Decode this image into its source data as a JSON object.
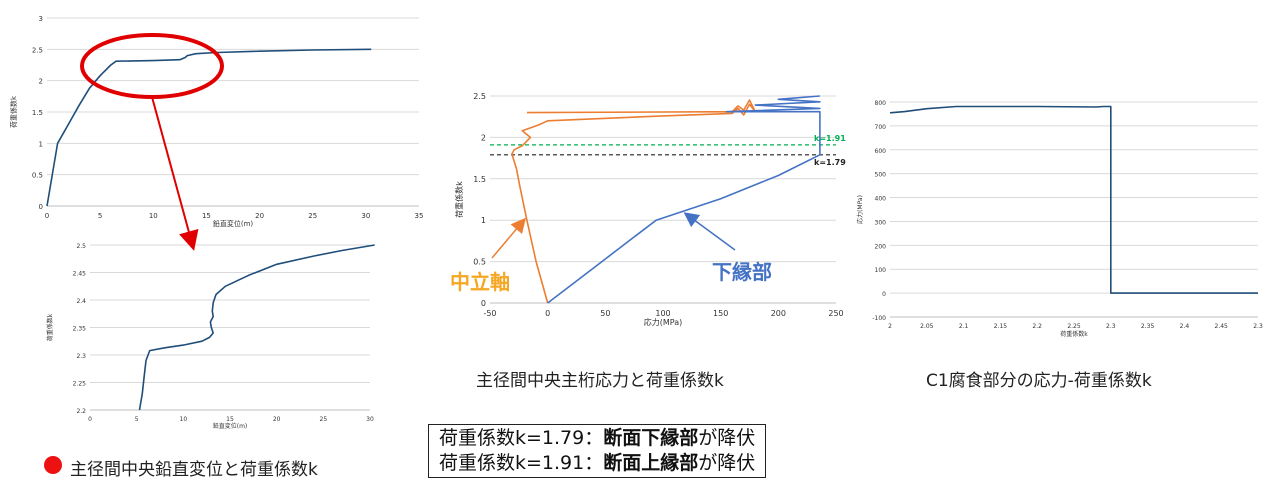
{
  "chart_data": [
    {
      "id": "chart1",
      "type": "line",
      "xlabel": "鉛直変位(m)",
      "ylabel": "荷重係数k",
      "xlim": [
        0,
        35
      ],
      "ylim": [
        0,
        3
      ],
      "xticks": [
        "0",
        "5",
        "10",
        "15",
        "20",
        "25",
        "30",
        "35"
      ],
      "yticks": [
        "0",
        "0.5",
        "1",
        "1.5",
        "2",
        "2.5",
        "3"
      ],
      "grid": true,
      "series": [
        {
          "color": "#1f4e79",
          "x": [
            0,
            1,
            2,
            3,
            4,
            5,
            6,
            6.5,
            10,
            12.5,
            13,
            13.2,
            14,
            16,
            20,
            25,
            30.5
          ],
          "y": [
            0,
            1,
            1.3,
            1.6,
            1.88,
            2.08,
            2.25,
            2.31,
            2.32,
            2.335,
            2.37,
            2.4,
            2.43,
            2.45,
            2.47,
            2.49,
            2.5
          ]
        }
      ]
    },
    {
      "id": "chart2",
      "type": "line",
      "xlabel": "鉛直変位(m)",
      "ylabel": "荷重係数k",
      "xlim": [
        0,
        30
      ],
      "ylim": [
        2.2,
        2.5
      ],
      "xticks": [
        "0",
        "5",
        "10",
        "15",
        "20",
        "25",
        "30"
      ],
      "yticks": [
        "2.2",
        "2.25",
        "2.3",
        "2.35",
        "2.4",
        "2.45",
        "2.5"
      ],
      "grid": true,
      "series": [
        {
          "color": "#1f4e79",
          "x": [
            5.3,
            5.6,
            5.8,
            6.0,
            6.4,
            8,
            10,
            12,
            12.8,
            13.2,
            13.0,
            12.9,
            13.2,
            13.1,
            13.2,
            13.5,
            14.5,
            17,
            20,
            24,
            27,
            30.5
          ],
          "y": [
            2.2,
            2.23,
            2.26,
            2.29,
            2.308,
            2.313,
            2.318,
            2.325,
            2.332,
            2.34,
            2.35,
            2.36,
            2.37,
            2.38,
            2.395,
            2.41,
            2.425,
            2.445,
            2.465,
            2.48,
            2.49,
            2.5
          ]
        }
      ]
    },
    {
      "id": "chart3",
      "type": "line",
      "xlabel": "応力(MPa)",
      "ylabel": "荷重係数k",
      "xlim": [
        -50,
        250
      ],
      "ylim": [
        0,
        2.5
      ],
      "xticks": [
        "-50",
        "0",
        "50",
        "100",
        "150",
        "200",
        "250"
      ],
      "yticks": [
        "0",
        "0.5",
        "1",
        "1.5",
        "2",
        "2.5"
      ],
      "grid": true,
      "series": [
        {
          "name": "中立軸",
          "color": "#ed7d31",
          "x": [
            0,
            -10,
            -18,
            -24,
            -27,
            -31,
            -29,
            -22,
            -15,
            -22,
            -8,
            0,
            100,
            160,
            165,
            170,
            175,
            180,
            175,
            170,
            165,
            160,
            -18
          ],
          "y": [
            0,
            0.5,
            1.0,
            1.4,
            1.62,
            1.8,
            1.85,
            1.9,
            2.0,
            2.08,
            2.15,
            2.2,
            2.26,
            2.29,
            2.35,
            2.27,
            2.4,
            2.31,
            2.45,
            2.33,
            2.38,
            2.31,
            2.3
          ]
        },
        {
          "name": "下縁部",
          "color": "#4472c4",
          "x": [
            0,
            47,
            94,
            150,
            200,
            236,
            236,
            155,
            236,
            180,
            236,
            200,
            236
          ],
          "y": [
            0,
            0.5,
            1.0,
            1.26,
            1.54,
            1.79,
            2.31,
            2.31,
            2.35,
            2.39,
            2.43,
            2.46,
            2.5
          ]
        }
      ],
      "reference_lines": [
        {
          "label": "k=1.91",
          "y": 1.91,
          "color": "#00b050"
        },
        {
          "label": "k=1.79",
          "y": 1.79,
          "color": "#222222"
        }
      ]
    },
    {
      "id": "chart4",
      "type": "line",
      "xlabel": "荷重係数k",
      "ylabel": "応力(MPa)",
      "xlim": [
        2,
        2.5
      ],
      "ylim": [
        -100,
        800
      ],
      "xticks": [
        "2",
        "2.05",
        "2.1",
        "2.15",
        "2.2",
        "2.25",
        "2.3",
        "2.35",
        "2.4",
        "2.45",
        "2.3"
      ],
      "yticks": [
        "-100",
        "0",
        "100",
        "200",
        "300",
        "400",
        "500",
        "600",
        "700",
        "800"
      ],
      "grid": true,
      "series": [
        {
          "color": "#1f4e79",
          "x": [
            2.0,
            2.02,
            2.05,
            2.09,
            2.2,
            2.28,
            2.29,
            2.3,
            2.3,
            2.5
          ],
          "y": [
            755,
            760,
            772,
            781,
            781,
            779,
            781,
            781,
            0,
            0
          ]
        }
      ]
    }
  ],
  "annotations": {
    "neutral_axis": "中立軸",
    "bottom_edge": "下縁部",
    "bullet_color": "#ee1111",
    "accent_orange": "#f5a623",
    "accent_blue": "#4472c4"
  },
  "captions": {
    "chart3": "主径間中央主桁応力と荷重係数k",
    "chart4": "C1腐食部分の応力-荷重係数k",
    "chart1": "主径間中央鉛直変位と荷重係数k"
  },
  "notes": {
    "line1": {
      "pre": "荷重係数k=1.79：",
      "bold": "断面下縁部",
      "post": "が降伏"
    },
    "line2": {
      "pre": "荷重係数k=1.91：",
      "bold": "断面上縁部",
      "post": "が降伏"
    }
  }
}
